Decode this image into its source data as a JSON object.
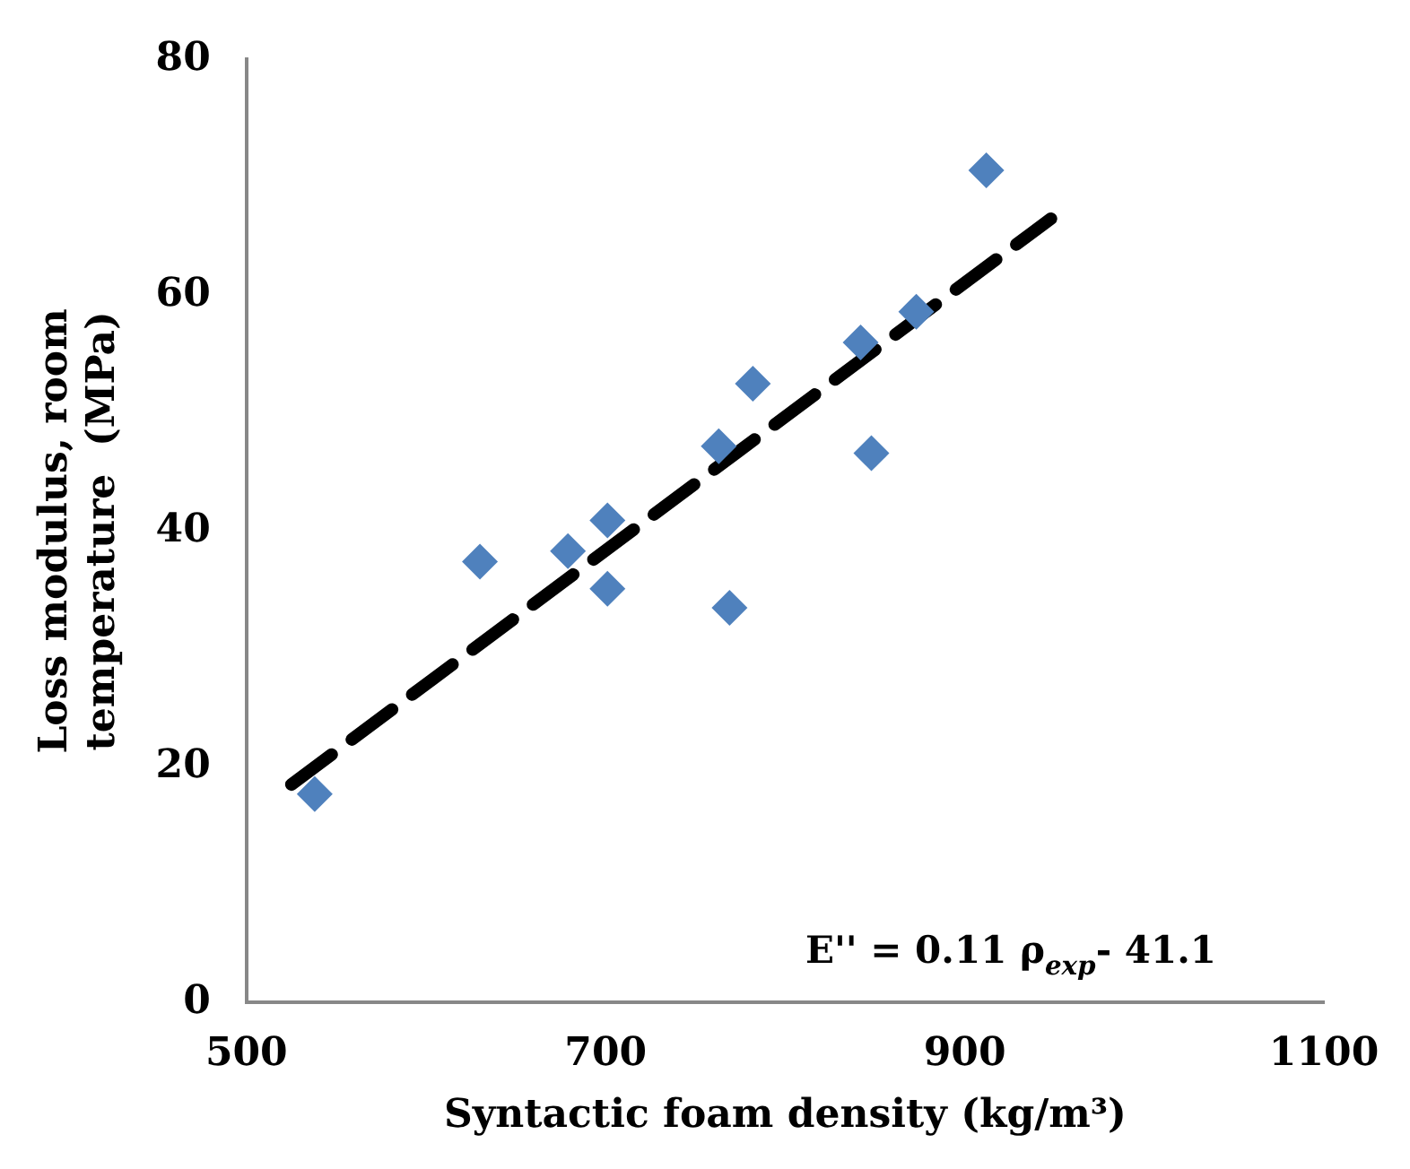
{
  "chart_data": {
    "type": "scatter",
    "xlabel": "Syntactic foam density (kg/m³)",
    "ylabel": "Loss modulus, room temperature  (MPa)",
    "xlim": [
      500,
      1100
    ],
    "xticks": [
      500,
      700,
      900,
      1100
    ],
    "ylim": [
      0,
      80
    ],
    "yticks": [
      0,
      20,
      40,
      60,
      80
    ],
    "grid": false,
    "legend": false,
    "marker": "diamond",
    "annotations": [
      "E'' = 0.11 ρ$_{exp}$- 41.1"
    ],
    "series": [
      {
        "type": "scatter",
        "color": "#4f81bd",
        "x": [
          538,
          630,
          679,
          701,
          701,
          763,
          782,
          769,
          842,
          848,
          873,
          912
        ],
        "values": [
          17.7,
          37.4,
          38.3,
          40.9,
          35.1,
          47.2,
          52.5,
          33.5,
          56,
          46.6,
          58.6,
          70.6
        ]
      },
      {
        "type": "line",
        "color": "#000000",
        "line_style": "dashed",
        "marker": "none",
        "x": [
          525,
          948
        ],
        "values": [
          18.5,
          66.5
        ]
      }
    ]
  }
}
